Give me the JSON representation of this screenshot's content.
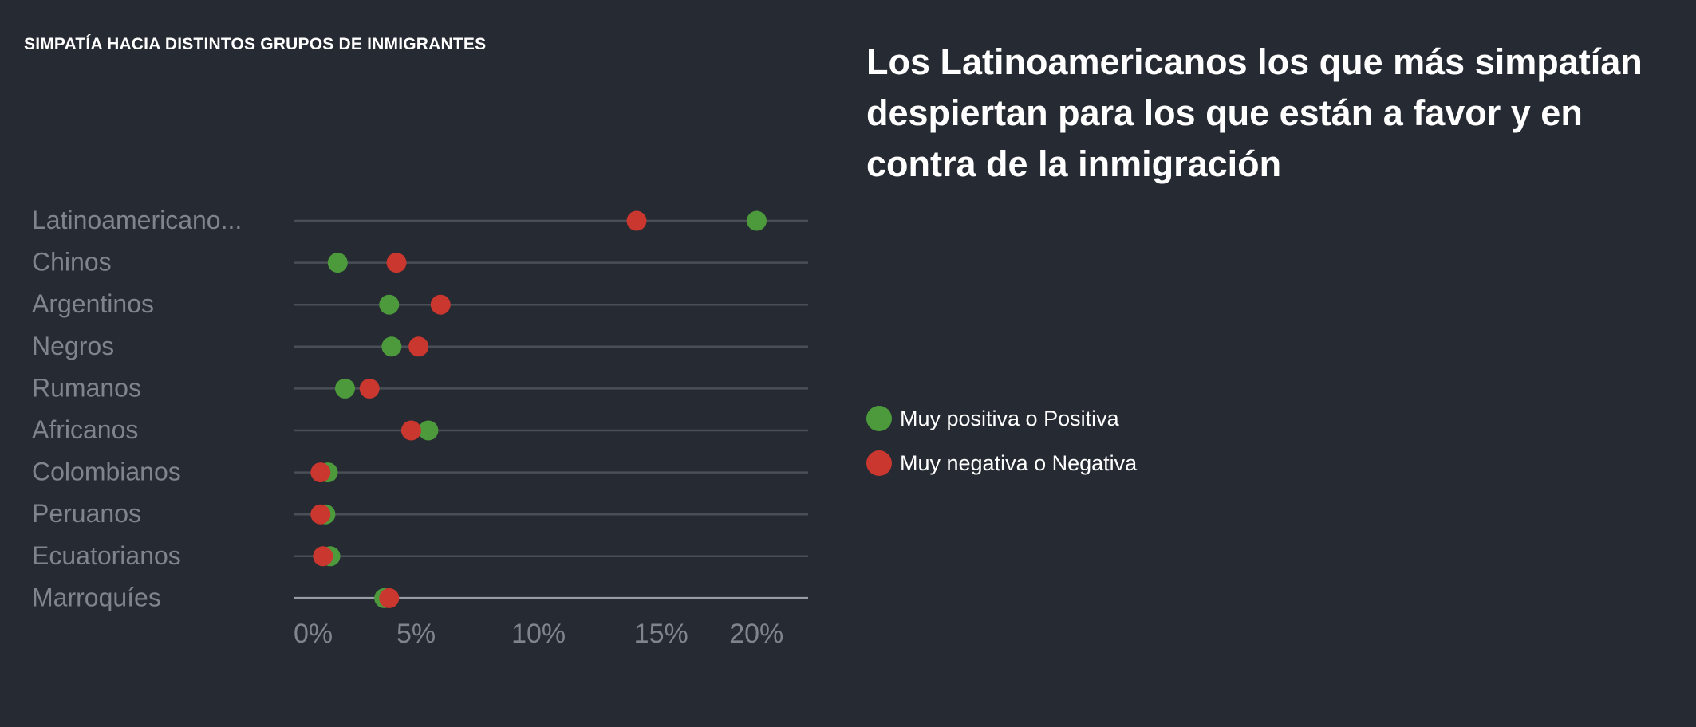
{
  "header": {
    "chart_title": "SIMPATÍA HACIA DISTINTOS GRUPOS DE INMIGRANTES",
    "headline": "Los Latinoamericanos los que más simpatían despiertan para los que están a favor y en contra de la inmigración"
  },
  "legend": [
    {
      "label": "Muy positiva o Positiva",
      "color": "#4c9a3c"
    },
    {
      "label": "Muy negativa o Negativa",
      "color": "#c9372f"
    }
  ],
  "chart_data": {
    "type": "scatter",
    "categories": [
      "Latinoamericano...",
      "Chinos",
      "Argentinos",
      "Negros",
      "Rumanos",
      "Africanos",
      "Colombianos",
      "Peruanos",
      "Ecuatorianos",
      "Marroquíes"
    ],
    "series": [
      {
        "name": "Muy positiva o Positiva",
        "color": "#4c9a3c",
        "values": [
          18.9,
          1.8,
          3.9,
          4.0,
          2.1,
          5.5,
          1.4,
          1.3,
          1.5,
          3.7
        ]
      },
      {
        "name": "Muy negativa o Negativa",
        "color": "#c9372f",
        "values": [
          14.0,
          4.2,
          6.0,
          5.1,
          3.1,
          4.8,
          1.1,
          1.1,
          1.2,
          3.9
        ]
      }
    ],
    "x_ticks": [
      "0%",
      "5%",
      "10%",
      "15%",
      "20%"
    ],
    "x_tick_values": [
      0,
      5,
      10,
      15,
      20
    ],
    "xlim": [
      0,
      21
    ],
    "title": "SIMPATÍA HACIA DISTINTOS GRUPOS DE INMIGRANTES",
    "xlabel": "",
    "ylabel": "",
    "grid": true,
    "legend_position": "right"
  }
}
